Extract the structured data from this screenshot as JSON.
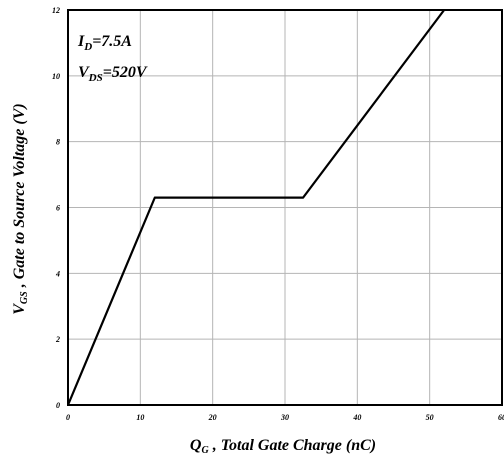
{
  "chart_data": {
    "type": "line",
    "xlabel_main": "Q",
    "xlabel_sub": "G",
    "xlabel_rest": " , Total Gate Charge (nC)",
    "ylabel_main": "V",
    "ylabel_sub": "GS",
    "ylabel_rest": " , Gate to Source Voltage (V)",
    "annotations": [
      {
        "main": "I",
        "sub": "D",
        "rest": "=7.5A"
      },
      {
        "main": "V",
        "sub": "DS",
        "rest": "=520V"
      }
    ],
    "xlim": [
      0,
      60
    ],
    "ylim": [
      0,
      12
    ],
    "xticks": [
      "0",
      "10",
      "20",
      "30",
      "40",
      "50",
      "60"
    ],
    "yticks": [
      "0",
      "2",
      "4",
      "6",
      "8",
      "10",
      "12"
    ],
    "grid": true,
    "series": [
      {
        "x": [
          0,
          12,
          32.5,
          52
        ],
        "y": [
          0,
          6.3,
          6.3,
          12
        ]
      }
    ]
  }
}
